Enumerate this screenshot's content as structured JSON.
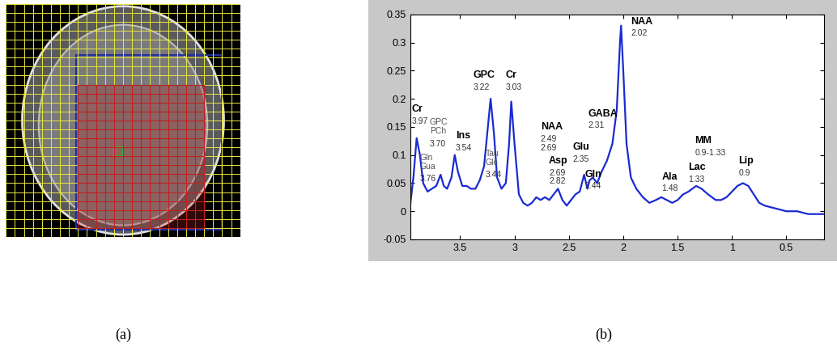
{
  "captions": [
    "(a)",
    "(b)"
  ],
  "chart_data": {
    "type": "line",
    "x": [
      3.96,
      3.93,
      3.9,
      3.87,
      3.84,
      3.8,
      3.76,
      3.72,
      3.68,
      3.65,
      3.62,
      3.58,
      3.55,
      3.52,
      3.48,
      3.44,
      3.4,
      3.36,
      3.32,
      3.28,
      3.25,
      3.22,
      3.19,
      3.16,
      3.12,
      3.08,
      3.05,
      3.03,
      3.0,
      2.96,
      2.92,
      2.88,
      2.84,
      2.8,
      2.76,
      2.72,
      2.68,
      2.64,
      2.6,
      2.56,
      2.52,
      2.48,
      2.44,
      2.4,
      2.36,
      2.33,
      2.31,
      2.28,
      2.24,
      2.2,
      2.15,
      2.1,
      2.06,
      2.03,
      2.02,
      2.0,
      1.97,
      1.93,
      1.88,
      1.82,
      1.76,
      1.7,
      1.65,
      1.6,
      1.55,
      1.5,
      1.45,
      1.4,
      1.33,
      1.28,
      1.22,
      1.15,
      1.1,
      1.05,
      1.0,
      0.95,
      0.9,
      0.85,
      0.8,
      0.75,
      0.7,
      0.6,
      0.5,
      0.4,
      0.3,
      0.2,
      0.15
    ],
    "series": [
      {
        "color": "#1a2bd0",
        "values": [
          0.01,
          0.06,
          0.13,
          0.1,
          0.05,
          0.035,
          0.04,
          0.045,
          0.065,
          0.045,
          0.04,
          0.06,
          0.1,
          0.07,
          0.045,
          0.045,
          0.04,
          0.04,
          0.055,
          0.08,
          0.14,
          0.2,
          0.14,
          0.06,
          0.04,
          0.05,
          0.12,
          0.195,
          0.12,
          0.03,
          0.015,
          0.01,
          0.015,
          0.025,
          0.02,
          0.025,
          0.02,
          0.03,
          0.04,
          0.02,
          0.01,
          0.02,
          0.03,
          0.035,
          0.065,
          0.04,
          0.055,
          0.06,
          0.05,
          0.07,
          0.09,
          0.12,
          0.18,
          0.3,
          0.33,
          0.25,
          0.12,
          0.06,
          0.04,
          0.025,
          0.015,
          0.02,
          0.025,
          0.02,
          0.015,
          0.02,
          0.03,
          0.035,
          0.045,
          0.04,
          0.03,
          0.02,
          0.02,
          0.025,
          0.035,
          0.045,
          0.05,
          0.045,
          0.03,
          0.015,
          0.01,
          0.005,
          0.0,
          0.0,
          -0.005,
          -0.005,
          -0.005
        ]
      }
    ],
    "xlim": [
      3.96,
      0.15
    ],
    "ylim": [
      -0.05,
      0.35
    ],
    "xticks": [
      3.5,
      3,
      2.5,
      2,
      1.5,
      1,
      0.5
    ],
    "yticks": [
      -0.05,
      0,
      0.05,
      0.1,
      0.15,
      0.2,
      0.25,
      0.3,
      0.35
    ],
    "annotations": [
      {
        "name": "Cr",
        "shift": "3.97"
      },
      {
        "name": "GPC\nPCh",
        "shift": "3.70"
      },
      {
        "name": "Gln\nGua",
        "shift": "3.76"
      },
      {
        "name": "Ins",
        "shift": "3.54"
      },
      {
        "name": "Tau\nGlc",
        "shift": "3.44"
      },
      {
        "name": "GPC",
        "shift": "3.22"
      },
      {
        "name": "Cr",
        "shift": "3.03"
      },
      {
        "name": "Asp",
        "shift": "2.69\n2.82"
      },
      {
        "name": "NAA",
        "shift": "2.49\n2.69"
      },
      {
        "name": "Gln",
        "shift": "2.44"
      },
      {
        "name": "Glu",
        "shift": "2.35"
      },
      {
        "name": "GABA",
        "shift": "2.31"
      },
      {
        "name": "NAA",
        "shift": "2.02"
      },
      {
        "name": "Ala",
        "shift": "1.48"
      },
      {
        "name": "Lac",
        "shift": "1.33"
      },
      {
        "name": "MM",
        "shift": "0.9-1.33"
      },
      {
        "name": "Lip",
        "shift": "0.9"
      }
    ]
  }
}
